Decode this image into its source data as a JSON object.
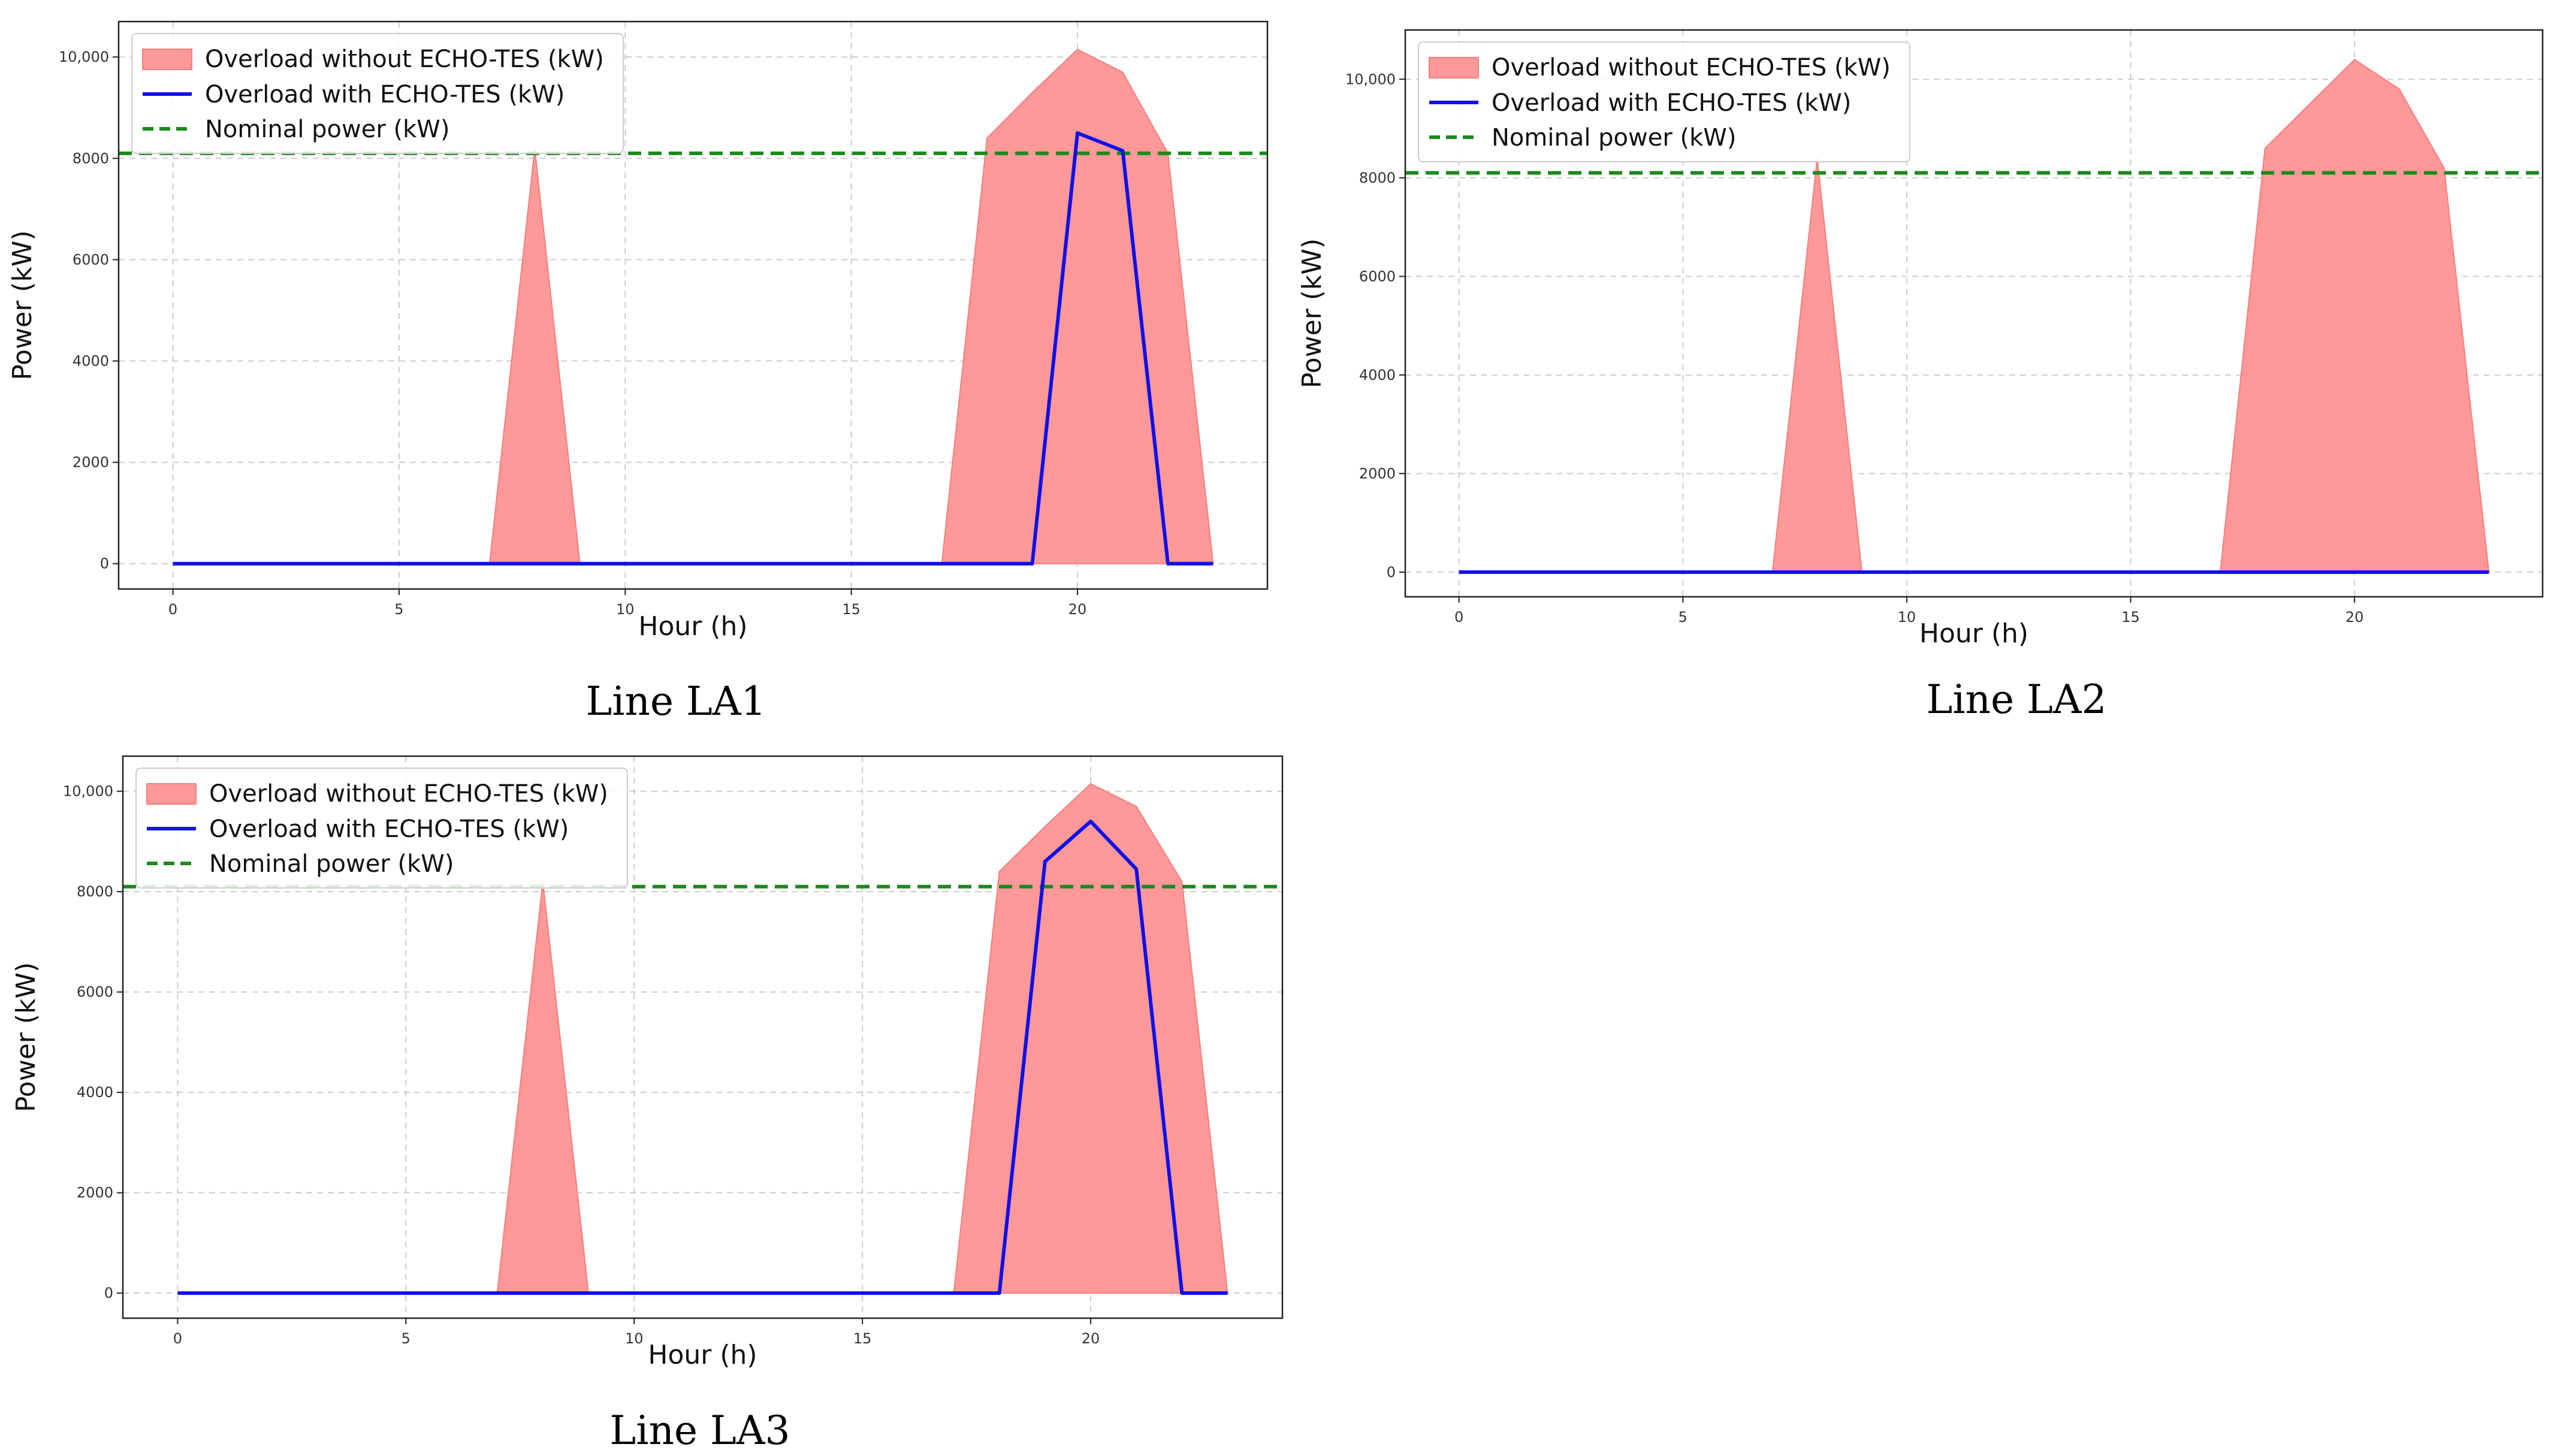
{
  "legend": {
    "without": "Overload without ECHO-TES (kW)",
    "with": "Overload with ECHO-TES (kW)",
    "nominal": "Nominal power (kW)"
  },
  "colors": {
    "without_fill": "#ff9999",
    "without_edge": "#f08080",
    "with_line": "#1010e8",
    "nominal_line": "#1a8a1a",
    "grid": "#cccccc"
  },
  "chart_data": [
    {
      "type": "area",
      "caption": "Line  LA1",
      "xlabel": "Hour (h)",
      "ylabel": "Power (kW)",
      "xlim": [
        -1.2,
        24.2
      ],
      "ylim": [
        -500,
        10700
      ],
      "xticks": [
        0,
        5,
        10,
        15,
        20
      ],
      "xtick_labels": [
        "0",
        "5",
        "10",
        "15",
        "20"
      ],
      "yticks": [
        0,
        2000,
        4000,
        6000,
        8000,
        10000
      ],
      "ytick_labels": [
        "0",
        "2000",
        "4000",
        "6000",
        "8000",
        "10,000"
      ],
      "grid": true,
      "legend_position": "upper-left",
      "nominal_power": 8100,
      "x": [
        0,
        1,
        2,
        3,
        4,
        5,
        6,
        7,
        8,
        9,
        10,
        11,
        12,
        13,
        14,
        15,
        16,
        17,
        18,
        19,
        20,
        21,
        22,
        23
      ],
      "series": [
        {
          "name": "Overload without ECHO-TES (kW)",
          "style": "area",
          "values": [
            0,
            0,
            0,
            0,
            0,
            0,
            0,
            0,
            8200,
            0,
            0,
            0,
            0,
            0,
            0,
            0,
            0,
            0,
            8400,
            9300,
            10150,
            9700,
            8100,
            0
          ]
        },
        {
          "name": "Overload with ECHO-TES (kW)",
          "style": "line",
          "values": [
            0,
            0,
            0,
            0,
            0,
            0,
            0,
            0,
            0,
            0,
            0,
            0,
            0,
            0,
            0,
            0,
            0,
            0,
            0,
            0,
            8500,
            8150,
            0,
            0
          ]
        }
      ]
    },
    {
      "type": "area",
      "caption": "Line  LA2",
      "xlabel": "Hour (h)",
      "ylabel": "Power (kW)",
      "xlim": [
        -1.2,
        24.2
      ],
      "ylim": [
        -500,
        11000
      ],
      "xticks": [
        0,
        5,
        10,
        15,
        20
      ],
      "xtick_labels": [
        "0",
        "5",
        "10",
        "15",
        "20"
      ],
      "yticks": [
        0,
        2000,
        4000,
        6000,
        8000,
        10000
      ],
      "ytick_labels": [
        "0",
        "2000",
        "4000",
        "6000",
        "8000",
        "10,000"
      ],
      "grid": true,
      "legend_position": "upper-left",
      "nominal_power": 8100,
      "x": [
        0,
        1,
        2,
        3,
        4,
        5,
        6,
        7,
        8,
        9,
        10,
        11,
        12,
        13,
        14,
        15,
        16,
        17,
        18,
        19,
        20,
        21,
        22,
        23
      ],
      "series": [
        {
          "name": "Overload without ECHO-TES (kW)",
          "style": "area",
          "values": [
            0,
            0,
            0,
            0,
            0,
            0,
            0,
            0,
            8400,
            0,
            0,
            0,
            0,
            0,
            0,
            0,
            0,
            0,
            8600,
            9500,
            10400,
            9800,
            8200,
            0
          ]
        },
        {
          "name": "Overload with ECHO-TES (kW)",
          "style": "line",
          "values": [
            0,
            0,
            0,
            0,
            0,
            0,
            0,
            0,
            0,
            0,
            0,
            0,
            0,
            0,
            0,
            0,
            0,
            0,
            0,
            0,
            0,
            0,
            0,
            0
          ]
        }
      ]
    },
    {
      "type": "area",
      "caption": "Line  LA3",
      "xlabel": "Hour (h)",
      "ylabel": "Power (kW)",
      "xlim": [
        -1.2,
        24.2
      ],
      "ylim": [
        -500,
        10700
      ],
      "xticks": [
        0,
        5,
        10,
        15,
        20
      ],
      "xtick_labels": [
        "0",
        "5",
        "10",
        "15",
        "20"
      ],
      "yticks": [
        0,
        2000,
        4000,
        6000,
        8000,
        10000
      ],
      "ytick_labels": [
        "0",
        "2000",
        "4000",
        "6000",
        "8000",
        "10,000"
      ],
      "grid": true,
      "legend_position": "upper-left",
      "nominal_power": 8100,
      "x": [
        0,
        1,
        2,
        3,
        4,
        5,
        6,
        7,
        8,
        9,
        10,
        11,
        12,
        13,
        14,
        15,
        16,
        17,
        18,
        19,
        20,
        21,
        22,
        23
      ],
      "series": [
        {
          "name": "Overload without ECHO-TES (kW)",
          "style": "area",
          "values": [
            0,
            0,
            0,
            0,
            0,
            0,
            0,
            0,
            8200,
            0,
            0,
            0,
            0,
            0,
            0,
            0,
            0,
            0,
            8400,
            9300,
            10150,
            9700,
            8200,
            0
          ]
        },
        {
          "name": "Overload with ECHO-TES (kW)",
          "style": "line",
          "values": [
            0,
            0,
            0,
            0,
            0,
            0,
            0,
            0,
            0,
            0,
            0,
            0,
            0,
            0,
            0,
            0,
            0,
            0,
            0,
            8600,
            9400,
            8450,
            0,
            0
          ]
        }
      ]
    }
  ]
}
